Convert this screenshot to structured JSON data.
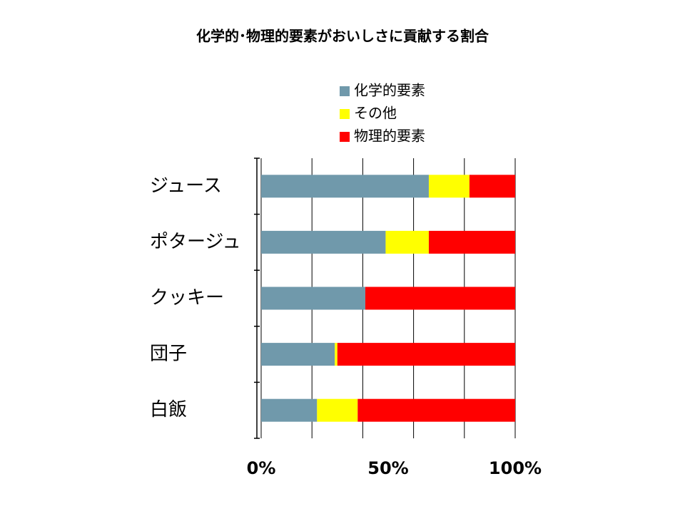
{
  "chart_data": {
    "type": "stacked-barh",
    "title": "化学的･物理的要素がおいしさに貢献する割合",
    "categories": [
      "ジュース",
      "ポタージュ",
      "クッキー",
      "団子",
      "白飯"
    ],
    "series": [
      {
        "name": "化学的要素",
        "color": "#7099ab",
        "values": [
          66,
          49,
          41,
          29,
          22
        ]
      },
      {
        "name": "その他",
        "color": "#ffff00",
        "values": [
          16,
          17,
          0,
          1,
          16
        ]
      },
      {
        "name": "物理的要素",
        "color": "#ff0000",
        "values": [
          18,
          34,
          59,
          70,
          62
        ]
      }
    ],
    "xlim": [
      0,
      100
    ],
    "xticks": [
      {
        "value": 0,
        "label": "0%"
      },
      {
        "value": 50,
        "label": "50%"
      },
      {
        "value": 100,
        "label": "100%"
      }
    ],
    "xgrid": [
      0,
      20,
      40,
      60,
      80,
      100
    ],
    "legend": "top"
  }
}
